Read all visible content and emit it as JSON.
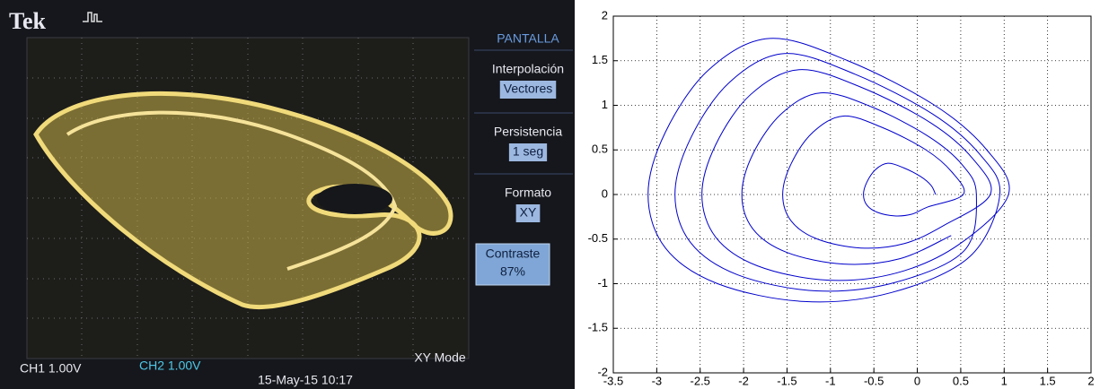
{
  "oscilloscope": {
    "brand": "Tek",
    "menu_title": "PANTALLA",
    "menu": [
      {
        "label": "Interpolación",
        "setting": "Vectores"
      },
      {
        "label": "Persistencia",
        "setting": "1 seg"
      },
      {
        "label": "Formato",
        "setting": "XY"
      },
      {
        "label": "Contraste",
        "setting": "87%"
      }
    ],
    "ch1": "CH1 1.00V",
    "ch2": "CH2 1.00V",
    "mode": "XY Mode",
    "timestamp": "15-May-15 10:17"
  },
  "chart_data": {
    "type": "line",
    "color": "#0000cc",
    "grid": true,
    "xlim": [
      -3.5,
      2
    ],
    "xticks": [
      -3.5,
      -3,
      -2.5,
      -2,
      -1.5,
      -1,
      -0.5,
      0,
      0.5,
      1,
      1.5,
      2
    ],
    "ylim": [
      -2,
      2
    ],
    "yticks": [
      -2,
      -1.5,
      -1,
      -0.5,
      0,
      0.5,
      1,
      1.5,
      2
    ],
    "x": [
      0.21,
      0.16,
      0.04,
      -0.16,
      -0.34,
      -0.48,
      -0.58,
      -0.62,
      -0.58,
      -0.46,
      -0.26,
      -0.06,
      0.12,
      0.53,
      0.4,
      0.1,
      -0.4,
      -0.85,
      -1.2,
      -1.45,
      -1.55,
      -1.45,
      -1.15,
      -0.65,
      -0.15,
      0.3,
      0.84,
      0.64,
      0.16,
      -0.64,
      -1.36,
      -1.92,
      -2.32,
      -2.48,
      -2.32,
      -1.84,
      -1.04,
      -0.24,
      0.48,
      1.05,
      0.8,
      0.2,
      -0.8,
      -1.7,
      -2.4,
      -2.9,
      -3.1,
      -2.9,
      -2.3,
      -1.3,
      -0.3,
      0.6,
      0.95,
      0.72,
      0.18,
      -0.72,
      -1.53,
      -2.16,
      -2.61,
      -2.79,
      -2.61,
      -2.07,
      -1.17,
      -0.27,
      0.54,
      0.68,
      0.52,
      0.13,
      -0.52,
      -1.11,
      -1.56,
      -1.89,
      -2.02,
      -1.89,
      -1.5,
      -0.85,
      -0.2,
      0.39
    ],
    "values": [
      0,
      0.1,
      0.2,
      0.3,
      0.35,
      0.28,
      0.14,
      0,
      -0.12,
      -0.2,
      -0.24,
      -0.22,
      -0.14,
      0,
      0.25,
      0.5,
      0.75,
      0.88,
      0.7,
      0.35,
      0,
      -0.3,
      -0.5,
      -0.6,
      -0.55,
      -0.35,
      0,
      0.4,
      0.8,
      1.2,
      1.4,
      1.12,
      0.56,
      0,
      -0.48,
      -0.8,
      -0.96,
      -0.88,
      -0.56,
      0,
      0.5,
      1,
      1.5,
      1.75,
      1.4,
      0.7,
      0,
      -0.6,
      -1,
      -1.2,
      -1.1,
      -0.7,
      0,
      0.45,
      0.9,
      1.35,
      1.58,
      1.26,
      0.63,
      0,
      -0.54,
      -0.9,
      -1.08,
      -0.99,
      -0.63,
      0,
      0.33,
      0.65,
      0.98,
      1.14,
      0.91,
      0.46,
      0,
      -0.39,
      -0.65,
      -0.78,
      -0.72,
      -0.46
    ]
  }
}
